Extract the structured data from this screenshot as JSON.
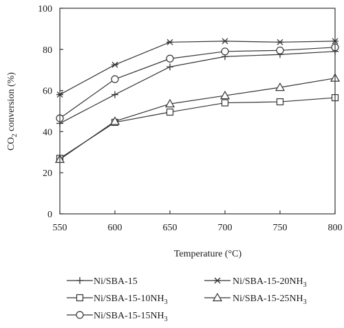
{
  "chart_data": {
    "type": "line",
    "x": [
      550,
      600,
      650,
      700,
      750,
      800
    ],
    "xlim": [
      550,
      800
    ],
    "ylim": [
      0,
      100
    ],
    "x_ticks": [
      "550",
      "600",
      "650",
      "700",
      "750",
      "800"
    ],
    "y_ticks": [
      "0",
      "20",
      "40",
      "60",
      "80",
      "100"
    ],
    "xlabel": "Temperature (°C)",
    "ylabel_prefix": "CO",
    "ylabel_sub": "2",
    "ylabel_suffix": " conversion (%)",
    "grid": false,
    "legend_position": "bottom",
    "series": [
      {
        "name": "Ni/SBA-15",
        "name_base": "Ni/SBA-15",
        "name_sub": "",
        "marker": "plus",
        "values": [
          44,
          58,
          71.5,
          76.5,
          77.5,
          79
        ]
      },
      {
        "name": "Ni/SBA-15-10NH3",
        "name_base": "Ni/SBA-15-10NH",
        "name_sub": "3",
        "marker": "square",
        "values": [
          27,
          44.5,
          49.5,
          54,
          54.5,
          56.5
        ]
      },
      {
        "name": "Ni/SBA-15-15NH3",
        "name_base": "Ni/SBA-15-15NH",
        "name_sub": "3",
        "marker": "circle",
        "values": [
          46.5,
          65.5,
          75.5,
          79,
          79.5,
          81
        ]
      },
      {
        "name": "Ni/SBA-15-20NH3",
        "name_base": "Ni/SBA-15-20NH",
        "name_sub": "3",
        "marker": "star",
        "values": [
          58,
          72.5,
          83.5,
          84,
          83.5,
          84
        ]
      },
      {
        "name": "Ni/SBA-15-25NH3",
        "name_base": "Ni/SBA-15-25NH",
        "name_sub": "3",
        "marker": "triangle",
        "values": [
          26.5,
          45,
          53.5,
          57.5,
          61.5,
          66
        ]
      }
    ]
  }
}
